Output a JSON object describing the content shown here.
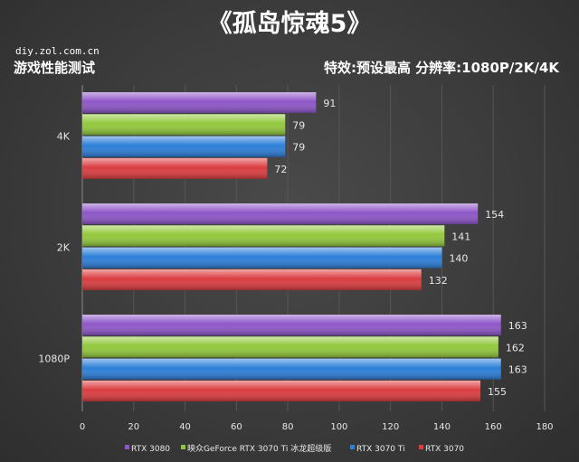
{
  "header": {
    "title": "《孤岛惊魂5》",
    "site": "diy.zol.com.cn",
    "left_subtitle": "游戏性能测试",
    "right_subtitle": "特效:预设最高  分辨率:1080P/2K/4K"
  },
  "colors": {
    "RTX 3080": "#8e57c8",
    "映众GeForce RTX 3070 Ti 冰龙超级版": "#92c83c",
    "RTX 3070 Ti": "#2d7fd9",
    "RTX 3070": "#db3d40"
  },
  "chart_data": {
    "type": "bar",
    "orientation": "horizontal",
    "categories": [
      "4K",
      "2K",
      "1080P"
    ],
    "series": [
      {
        "name": "RTX 3080",
        "values": [
          91,
          154,
          163
        ]
      },
      {
        "name": "映众GeForce RTX 3070 Ti 冰龙超级版",
        "values": [
          79,
          141,
          162
        ]
      },
      {
        "name": "RTX 3070 Ti",
        "values": [
          79,
          140,
          163
        ]
      },
      {
        "name": "RTX 3070",
        "values": [
          72,
          132,
          155
        ]
      }
    ],
    "xlim": [
      0,
      180
    ],
    "xticks": [
      0,
      20,
      40,
      60,
      80,
      100,
      120,
      140,
      160,
      180
    ],
    "grid": true,
    "legend": "bottom"
  }
}
